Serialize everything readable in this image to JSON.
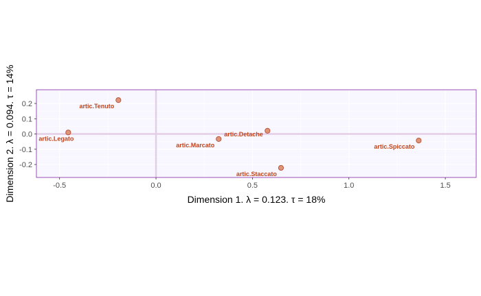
{
  "chart_data": {
    "type": "scatter",
    "title": "",
    "xlabel": "Dimension 1.   λ = 0.123.  τ = 18%",
    "ylabel": "Dimension 2.   λ = 0.094.  τ = 14%",
    "xlim": [
      -0.62,
      1.66
    ],
    "ylim": [
      -0.285,
      0.29
    ],
    "xticks": [
      -0.5,
      0.0,
      0.5,
      1.0,
      1.5
    ],
    "xtick_labels": [
      "-0.5",
      "0.0",
      "0.5",
      "1.0",
      "1.5"
    ],
    "yticks": [
      0.2,
      0.1,
      0.0,
      -0.1,
      -0.2
    ],
    "ytick_labels": [
      "0.2",
      "0.1",
      "0.0",
      "-0.1",
      "-0.2"
    ],
    "grid": true,
    "reference_lines": {
      "x": 0,
      "y": 0
    },
    "colors": {
      "point_fill": "#e0957a",
      "point_stroke": "#b5573a",
      "label": "#c0441c",
      "panel_bg": "#f8f7ff",
      "panel_border": "#9b4fb8",
      "ref_line": "#e4cde6"
    },
    "points": [
      {
        "label": "artic.Tenuto",
        "x": -0.195,
        "y": 0.222,
        "label_pos": "bottom-left"
      },
      {
        "label": "artic.Legato",
        "x": -0.455,
        "y": 0.01,
        "label_pos": "bottom-right"
      },
      {
        "label": "artic.Detache",
        "x": 0.578,
        "y": 0.021,
        "label_pos": "bottom-left"
      },
      {
        "label": "artic.Marcato",
        "x": 0.325,
        "y": -0.033,
        "label_pos": "bottom-left"
      },
      {
        "label": "artic.Spiccato",
        "x": 1.362,
        "y": -0.043,
        "label_pos": "bottom-left"
      },
      {
        "label": "artic.Staccato",
        "x": 0.648,
        "y": -0.222,
        "label_pos": "bottom-left"
      }
    ]
  }
}
